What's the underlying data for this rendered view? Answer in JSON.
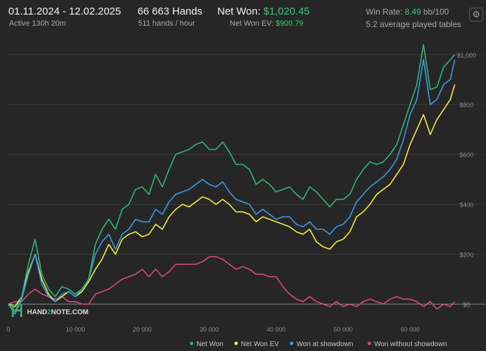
{
  "header": {
    "date_range": "01.11.2024 - 12.02.2025",
    "active": "Active 130h 20m",
    "hands": "66 663 Hands",
    "hands_rate": "511 hands / hour",
    "net_won_label": "Net Won:",
    "net_won_value": "$1,020.45",
    "net_won_ev_label": "Net Won  EV:",
    "net_won_ev_value": "$900.79",
    "win_rate_label": "Win Rate:",
    "win_rate_value": "8.49",
    "win_rate_unit": "bb/100",
    "tables": "5.2 average played tables"
  },
  "icons": {
    "settings": "gear-icon"
  },
  "logo": {
    "text_left": "HAND",
    "text_mid": "2",
    "text_right": "NOTE.COM"
  },
  "colors": {
    "net_won": "#2fb877",
    "net_won_ev": "#f3ef3e",
    "won_at_showdown": "#3d9ae6",
    "won_without_showdown": "#d94a7f",
    "accent": "#35c97d"
  },
  "chart_data": {
    "type": "line",
    "xlim": [
      0,
      66663
    ],
    "ylim": [
      -60,
      1080
    ],
    "x_ticks": [
      0,
      10000,
      20000,
      30000,
      40000,
      50000,
      60000
    ],
    "x_tick_labels": [
      "0",
      "10 000",
      "20 000",
      "30 000",
      "40 000",
      "50 000",
      "60 000"
    ],
    "y_ticks": [
      0,
      200,
      400,
      600,
      800,
      1000
    ],
    "y_tick_labels": [
      "$0",
      "$200",
      "$400",
      "$600",
      "$800",
      "$1,000"
    ],
    "y_axis_side": "right",
    "grid": "horizontal",
    "legend_position": "bottom-right",
    "series": [
      {
        "name": "Net Won",
        "x": [
          0,
          1000,
          2000,
          3000,
          4000,
          5000,
          6000,
          7000,
          8000,
          9000,
          10000,
          11000,
          12000,
          13000,
          14000,
          15000,
          16000,
          17000,
          18000,
          19000,
          20000,
          21000,
          22000,
          23000,
          24000,
          25000,
          26000,
          27000,
          28000,
          29000,
          30000,
          31000,
          32000,
          33000,
          34000,
          35000,
          36000,
          37000,
          38000,
          39000,
          40000,
          41000,
          42000,
          43000,
          44000,
          45000,
          46000,
          47000,
          48000,
          49000,
          50000,
          51000,
          52000,
          53000,
          54000,
          55000,
          56000,
          57000,
          58000,
          59000,
          60000,
          61000,
          62000,
          63000,
          64000,
          65000,
          66000,
          66663
        ],
        "values": [
          0,
          -30,
          30,
          160,
          260,
          120,
          60,
          30,
          70,
          60,
          40,
          60,
          100,
          240,
          300,
          340,
          300,
          380,
          400,
          460,
          470,
          440,
          520,
          470,
          540,
          600,
          610,
          620,
          640,
          650,
          620,
          620,
          650,
          610,
          560,
          560,
          540,
          480,
          500,
          480,
          450,
          460,
          470,
          440,
          420,
          470,
          450,
          420,
          390,
          420,
          420,
          440,
          500,
          540,
          570,
          560,
          570,
          600,
          640,
          720,
          800,
          880,
          1040,
          860,
          870,
          950,
          980,
          1000
        ]
      },
      {
        "name": "Net Won  EV",
        "x": [
          0,
          1000,
          2000,
          3000,
          4000,
          5000,
          6000,
          7000,
          8000,
          9000,
          10000,
          11000,
          12000,
          13000,
          14000,
          15000,
          16000,
          17000,
          18000,
          19000,
          20000,
          21000,
          22000,
          23000,
          24000,
          25000,
          26000,
          27000,
          28000,
          29000,
          30000,
          31000,
          32000,
          33000,
          34000,
          35000,
          36000,
          37000,
          38000,
          39000,
          40000,
          41000,
          42000,
          43000,
          44000,
          45000,
          46000,
          47000,
          48000,
          49000,
          50000,
          51000,
          52000,
          53000,
          54000,
          55000,
          56000,
          57000,
          58000,
          59000,
          60000,
          61000,
          62000,
          63000,
          64000,
          65000,
          66000,
          66663
        ],
        "values": [
          0,
          -10,
          30,
          130,
          200,
          100,
          40,
          10,
          30,
          50,
          30,
          50,
          90,
          140,
          180,
          240,
          200,
          260,
          280,
          290,
          270,
          280,
          320,
          300,
          350,
          380,
          400,
          390,
          410,
          430,
          420,
          400,
          420,
          400,
          370,
          370,
          360,
          330,
          350,
          340,
          330,
          320,
          310,
          290,
          280,
          300,
          250,
          230,
          220,
          250,
          260,
          290,
          350,
          370,
          400,
          440,
          460,
          480,
          520,
          560,
          640,
          700,
          760,
          680,
          740,
          780,
          820,
          880
        ]
      },
      {
        "name": "Won at showdown",
        "x": [
          0,
          1000,
          2000,
          3000,
          4000,
          5000,
          6000,
          7000,
          8000,
          9000,
          10000,
          11000,
          12000,
          13000,
          14000,
          15000,
          16000,
          17000,
          18000,
          19000,
          20000,
          21000,
          22000,
          23000,
          24000,
          25000,
          26000,
          27000,
          28000,
          29000,
          30000,
          31000,
          32000,
          33000,
          34000,
          35000,
          36000,
          37000,
          38000,
          39000,
          40000,
          41000,
          42000,
          43000,
          44000,
          45000,
          46000,
          47000,
          48000,
          49000,
          50000,
          51000,
          52000,
          53000,
          54000,
          55000,
          56000,
          57000,
          58000,
          59000,
          60000,
          61000,
          62000,
          63000,
          64000,
          65000,
          66000,
          66663
        ],
        "values": [
          0,
          -40,
          20,
          120,
          200,
          80,
          30,
          10,
          40,
          50,
          30,
          60,
          100,
          200,
          250,
          280,
          220,
          280,
          300,
          340,
          330,
          330,
          380,
          360,
          410,
          440,
          450,
          460,
          480,
          500,
          480,
          470,
          490,
          450,
          420,
          410,
          400,
          360,
          380,
          360,
          340,
          350,
          350,
          320,
          310,
          330,
          300,
          300,
          280,
          310,
          320,
          350,
          410,
          440,
          470,
          490,
          510,
          540,
          580,
          660,
          760,
          820,
          980,
          800,
          820,
          880,
          900,
          980
        ]
      },
      {
        "name": "Won without showdown",
        "x": [
          0,
          1000,
          2000,
          3000,
          4000,
          5000,
          6000,
          7000,
          8000,
          9000,
          10000,
          11000,
          12000,
          13000,
          14000,
          15000,
          16000,
          17000,
          18000,
          19000,
          20000,
          21000,
          22000,
          23000,
          24000,
          25000,
          26000,
          27000,
          28000,
          29000,
          30000,
          31000,
          32000,
          33000,
          34000,
          35000,
          36000,
          37000,
          38000,
          39000,
          40000,
          41000,
          42000,
          43000,
          44000,
          45000,
          46000,
          47000,
          48000,
          49000,
          50000,
          51000,
          52000,
          53000,
          54000,
          55000,
          56000,
          57000,
          58000,
          59000,
          60000,
          61000,
          62000,
          63000,
          64000,
          65000,
          66000,
          66663
        ],
        "values": [
          0,
          10,
          10,
          40,
          60,
          40,
          30,
          20,
          30,
          10,
          10,
          0,
          0,
          40,
          50,
          60,
          80,
          100,
          110,
          120,
          140,
          110,
          140,
          110,
          130,
          160,
          160,
          160,
          160,
          170,
          190,
          190,
          180,
          160,
          140,
          150,
          140,
          120,
          120,
          110,
          110,
          70,
          40,
          20,
          10,
          30,
          10,
          0,
          -10,
          10,
          -10,
          0,
          -10,
          10,
          20,
          10,
          0,
          20,
          30,
          20,
          20,
          10,
          -10,
          10,
          -20,
          0,
          -10,
          10
        ]
      }
    ]
  }
}
